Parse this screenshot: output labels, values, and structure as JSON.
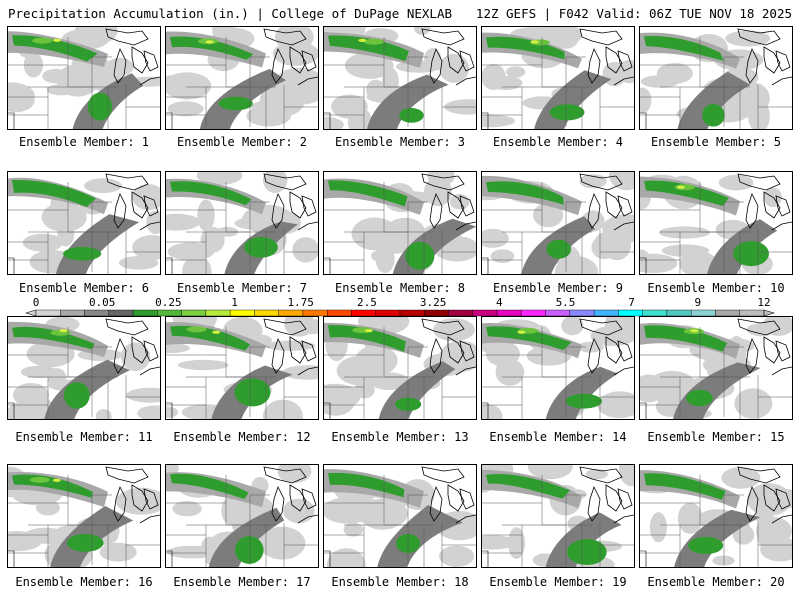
{
  "header": {
    "title_left": "Precipitation Accumulation (in.) | College of DuPage NEXLAB",
    "title_right": "12Z GEFS | F042 Valid: 06Z TUE NOV 18 2025"
  },
  "member_label_prefix": "Ensemble Member: ",
  "members": [
    1,
    2,
    3,
    4,
    5,
    6,
    7,
    8,
    9,
    10,
    11,
    12,
    13,
    14,
    15,
    16,
    17,
    18,
    19,
    20
  ],
  "colorbar": {
    "tick_labels": [
      "0",
      "0.05",
      "0.25",
      "1",
      "1.75",
      "2.5",
      "3.25",
      "4",
      "5.5",
      "7",
      "9",
      "12"
    ],
    "colors": [
      "#d4d4d4",
      "#a8a8a8",
      "#888888",
      "#666666",
      "#2e9d2e",
      "#52b83a",
      "#7cd040",
      "#b6ea3c",
      "#ffff00",
      "#ffd800",
      "#ffa800",
      "#ff7800",
      "#ff4800",
      "#ff0000",
      "#e00000",
      "#b80000",
      "#900000",
      "#a00040",
      "#c80080",
      "#e800c0",
      "#ff28ff",
      "#c860ff",
      "#8888ff",
      "#40b4ff",
      "#00ffff",
      "#40e0d0",
      "#50c8c0",
      "#8cd2d2",
      "#a8a8a8",
      "#bcbcbc"
    ]
  },
  "map_colors": {
    "light": "#d2d2d2",
    "mid": "#a8a8a8",
    "dark": "#7c7c7c",
    "green": "#2e9d2e",
    "lightgreen": "#6cc43c",
    "yellowgreen": "#d4f040"
  }
}
